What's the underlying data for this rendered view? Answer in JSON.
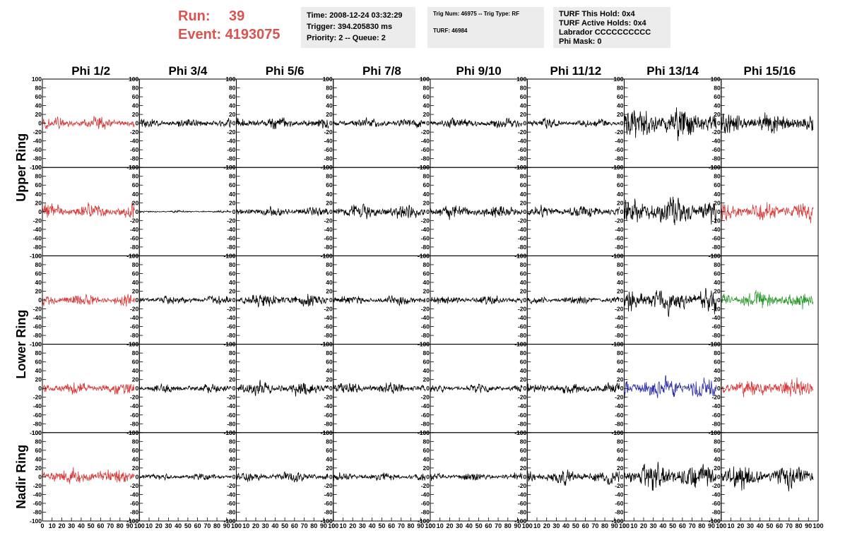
{
  "header": {
    "run_label": "Run:",
    "run_value": "39",
    "event_label": "Event:",
    "event_value": "4193075",
    "time_box": [
      "Time: 2008-12-24 03:32:29",
      "Trigger: 394.205830 ms",
      "Priority: 2 -- Queue: 2"
    ],
    "trig_box": [
      "Trig Num: 46975 -- Trig Type: RF",
      "",
      "TURF: 46984"
    ],
    "turf_box": [
      "TURF This Hold: 0x4",
      "TURF Active Holds: 0x4",
      "Labrador CCCCCCCCCC",
      "Phi Mask: 0"
    ]
  },
  "chart_data": {
    "type": "line",
    "columns": [
      "Phi 1/2",
      "Phi 3/4",
      "Phi 5/6",
      "Phi 7/8",
      "Phi 9/10",
      "Phi 11/12",
      "Phi 13/14",
      "Phi 15/16"
    ],
    "rows": [
      "Upper Ring",
      "Upper Ring",
      "Lower Ring",
      "Lower Ring",
      "Nadir Ring"
    ],
    "row_labels": [
      {
        "label": "Upper Ring",
        "rows": [
          0,
          1
        ]
      },
      {
        "label": "Lower Ring",
        "rows": [
          2,
          3
        ]
      },
      {
        "label": "Nadir Ring",
        "rows": [
          4,
          4
        ]
      }
    ],
    "y_ticks": [
      -100,
      -80,
      -60,
      -40,
      -20,
      0,
      20,
      40,
      60,
      80,
      100
    ],
    "y_tick_labels": [
      "-100",
      "-80",
      "-60",
      "-40",
      "-20",
      "0",
      "20",
      "40",
      "60",
      "80",
      "100"
    ],
    "ylim": [
      -100,
      100
    ],
    "x_ticks": [
      0,
      10,
      20,
      30,
      40,
      50,
      60,
      70,
      80,
      90,
      100
    ],
    "x_tick_labels": [
      "0",
      "10",
      "20",
      "30",
      "40",
      "50",
      "60",
      "70",
      "80",
      "90",
      "100"
    ],
    "xlim": [
      0,
      100
    ],
    "trace_x_range": [
      0,
      95
    ],
    "trace_points": 260,
    "colors": {
      "default": "#000000",
      "red": "#d63a3a",
      "green": "#2e9a2e",
      "blue": "#2c2ca8"
    },
    "panels": [
      [
        {
          "color": "red",
          "amp": 18
        },
        {
          "color": "default",
          "amp": 13
        },
        {
          "color": "default",
          "amp": 16
        },
        {
          "color": "default",
          "amp": 13
        },
        {
          "color": "default",
          "amp": 14
        },
        {
          "color": "default",
          "amp": 13
        },
        {
          "color": "default",
          "amp": 45
        },
        {
          "color": "default",
          "amp": 30
        }
      ],
      [
        {
          "color": "red",
          "amp": 22
        },
        {
          "color": "default",
          "amp": 3
        },
        {
          "color": "default",
          "amp": 14
        },
        {
          "color": "default",
          "amp": 20
        },
        {
          "color": "default",
          "amp": 20
        },
        {
          "color": "default",
          "amp": 18
        },
        {
          "color": "default",
          "amp": 40
        },
        {
          "color": "red",
          "amp": 26
        }
      ],
      [
        {
          "color": "red",
          "amp": 17
        },
        {
          "color": "default",
          "amp": 12
        },
        {
          "color": "default",
          "amp": 18
        },
        {
          "color": "default",
          "amp": 14
        },
        {
          "color": "default",
          "amp": 13
        },
        {
          "color": "default",
          "amp": 11
        },
        {
          "color": "default",
          "amp": 38
        },
        {
          "color": "green",
          "amp": 24
        }
      ],
      [
        {
          "color": "red",
          "amp": 17
        },
        {
          "color": "default",
          "amp": 13
        },
        {
          "color": "default",
          "amp": 18
        },
        {
          "color": "default",
          "amp": 16
        },
        {
          "color": "default",
          "amp": 12
        },
        {
          "color": "default",
          "amp": 16
        },
        {
          "color": "blue",
          "amp": 32
        },
        {
          "color": "red",
          "amp": 26
        }
      ],
      [
        {
          "color": "red",
          "amp": 24
        },
        {
          "color": "default",
          "amp": 10
        },
        {
          "color": "default",
          "amp": 14
        },
        {
          "color": "default",
          "amp": 11
        },
        {
          "color": "default",
          "amp": 11
        },
        {
          "color": "default",
          "amp": 20
        },
        {
          "color": "default",
          "amp": 36
        },
        {
          "color": "default",
          "amp": 36
        }
      ]
    ]
  }
}
